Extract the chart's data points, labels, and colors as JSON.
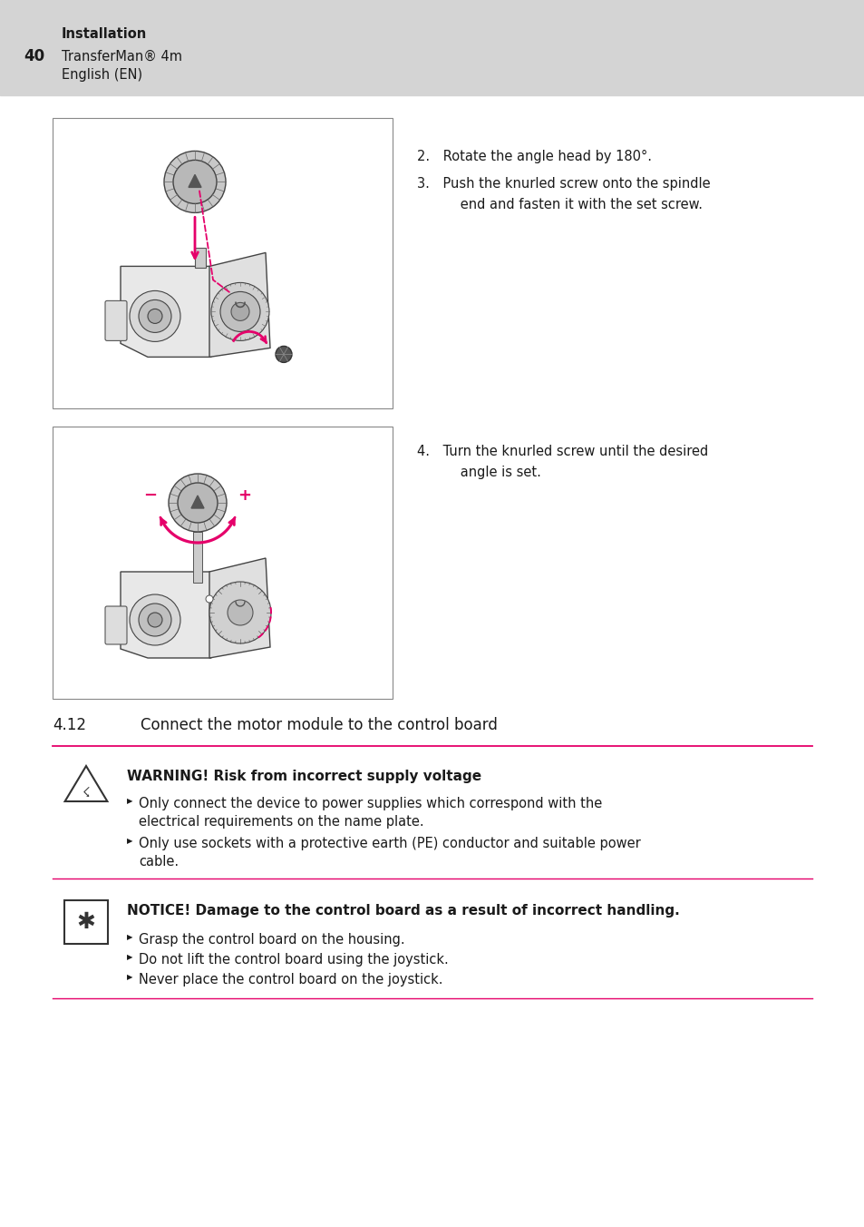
{
  "bg_color": "#ffffff",
  "header_bg": "#d4d4d4",
  "header_number": "40",
  "header_line1": "Installation",
  "header_line2": "TransferMan® 4m",
  "header_line3": "English (EN)",
  "step2_text": "2. Rotate the angle head by 180°.",
  "step3a": "3. Push the knurled screw onto the spindle",
  "step3b": "      end and fasten it with the set screw.",
  "step4a": "4. Turn the knurled screw until the desired",
  "step4b": "      angle is set.",
  "section_number": "4.12",
  "section_title": "Connect the motor module to the control board",
  "warning_title": "WARNING! Risk from incorrect supply voltage",
  "warning_b1a": "Only connect the device to power supplies which correspond with the",
  "warning_b1b": "electrical requirements on the name plate.",
  "warning_b2a": "Only use sockets with a protective earth (PE) conductor and suitable power",
  "warning_b2b": "cable.",
  "notice_title": "NOTICE! Damage to the control board as a result of incorrect handling.",
  "notice_b1": "Grasp the control board on the housing.",
  "notice_b2": "Do not lift the control board using the joystick.",
  "notice_b3": "Never place the control board on the joystick.",
  "pink": "#e5006a",
  "dark": "#1a1a1a",
  "gray_border": "#666666",
  "box_fill": "#ffffff",
  "icon_fill": "#f5f5f5"
}
